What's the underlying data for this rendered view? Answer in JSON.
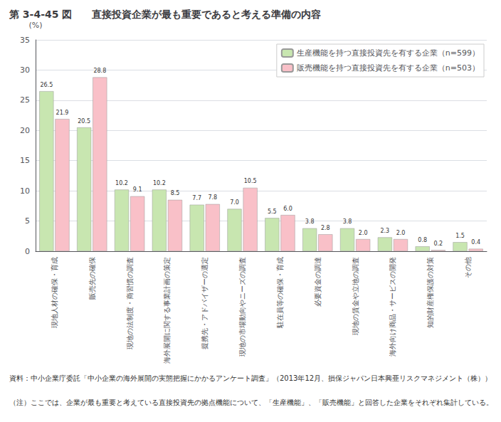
{
  "chart_data": {
    "type": "bar",
    "title": "第 3-4-45 図　　直接投資企業が最も重要であると考える準備の内容",
    "ylabel": "(%)",
    "categories": [
      "現地人材の確保・育成",
      "販売先の確保",
      "現地の法制度・商習慣の調査",
      "海外展開に関する事業計画の策定",
      "提携先・アドバイザーの選定",
      "現地の市場動向やニーズの調査",
      "駐在員等の確保・育成",
      "必要資金の調達",
      "現地の賃金や立地の調査",
      "海外向け商品・サービスの開発",
      "知的財産権保護の対策",
      "その他"
    ],
    "series": [
      {
        "name": "生産機能を持つ直接投資先を有する企業（n=599）",
        "color": "#c8e6b0",
        "values": [
          26.5,
          20.5,
          10.2,
          10.2,
          7.7,
          7.0,
          5.5,
          3.8,
          3.8,
          2.3,
          0.8,
          1.5
        ],
        "value_labels": [
          "26.5",
          "20.5",
          "10.2",
          "10.2",
          "7.7",
          "7.0",
          "5.5",
          "3.8",
          "3.8",
          "2.3",
          "0.8",
          "1.5"
        ]
      },
      {
        "name": "販売機能を持つ直接投資先を有する企業（n=503）",
        "color": "#f9c0c8",
        "values": [
          21.9,
          28.8,
          9.1,
          8.5,
          7.8,
          10.5,
          6.0,
          2.8,
          2.0,
          2.0,
          0.2,
          0.4
        ],
        "value_labels": [
          "21.9",
          "28.8",
          "9.1",
          "8.5",
          "7.8",
          "10.5",
          "6.0",
          "2.8",
          "2.0",
          "2.0",
          "0.2",
          "0.4"
        ]
      }
    ],
    "ylim": [
      0,
      35
    ],
    "yticks": [
      0,
      5,
      10,
      15,
      20,
      25,
      30,
      35
    ],
    "grid": true,
    "legend": "upper right",
    "data_labels": true,
    "annotations": [
      "資料：中小企業庁委託「中小企業の海外展開の実態把握にかかるアンケート調査」（2013年12月、損保ジャパン日本興亜リスクマネジメント（株））",
      "（注）ここでは、企業が最も重要と考えている直接投資先の拠点機能について、「生産機能」、「販売機能」と回答した企業をそれぞれ集計している。"
    ]
  }
}
